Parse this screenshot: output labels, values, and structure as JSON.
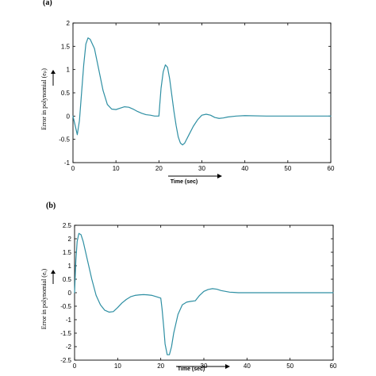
{
  "chart_data": [
    {
      "type": "line",
      "panel": "(a)",
      "xlabel": "Time (sec)",
      "ylabel": "Error in polynomial (eₚ)",
      "xlim": [
        0,
        60
      ],
      "ylim": [
        -1,
        2
      ],
      "xticks": [
        0,
        10,
        20,
        30,
        40,
        50,
        60
      ],
      "yticks": [
        -1,
        -0.5,
        0,
        0.5,
        1,
        1.5,
        2
      ],
      "xtick_labels": [
        "0",
        "10",
        "20",
        "30",
        "40",
        "50",
        "60"
      ],
      "ytick_labels": [
        "-1",
        "-0.5",
        "0",
        "0.5",
        "1",
        "1.5",
        "2"
      ],
      "grid": false,
      "series": [
        {
          "color": "#2e8fa3",
          "x": [
            0,
            0.5,
            1,
            1.5,
            2,
            2.5,
            3,
            3.5,
            4,
            5,
            6,
            7,
            8,
            9,
            10,
            11,
            12,
            13,
            14,
            15,
            16,
            17,
            18,
            19,
            20,
            20.2,
            20.5,
            21,
            21.5,
            22,
            22.5,
            23,
            23.5,
            24,
            24.5,
            25,
            25.5,
            26,
            27,
            28,
            29,
            30,
            31,
            32,
            33,
            34,
            35,
            36,
            38,
            40,
            45,
            50,
            55,
            60
          ],
          "y": [
            0,
            -0.2,
            -0.4,
            -0.1,
            0.5,
            1.1,
            1.55,
            1.68,
            1.65,
            1.45,
            1.0,
            0.55,
            0.25,
            0.15,
            0.14,
            0.17,
            0.2,
            0.19,
            0.15,
            0.1,
            0.06,
            0.03,
            0.02,
            0.0,
            0.0,
            0.25,
            0.6,
            0.95,
            1.1,
            1.05,
            0.8,
            0.45,
            0.1,
            -0.2,
            -0.45,
            -0.58,
            -0.62,
            -0.58,
            -0.4,
            -0.22,
            -0.08,
            0.02,
            0.04,
            0.02,
            -0.03,
            -0.05,
            -0.04,
            -0.02,
            0.0,
            0.01,
            0.0,
            0.0,
            0.0,
            0.0
          ]
        }
      ]
    },
    {
      "type": "line",
      "panel": "(b)",
      "xlabel": "Time (sec)",
      "ylabel": "Error in polynomial (eₑ)",
      "xlim": [
        0,
        60
      ],
      "ylim": [
        -2.5,
        2.5
      ],
      "xticks": [
        0,
        10,
        20,
        30,
        40,
        50,
        60
      ],
      "yticks": [
        -2.5,
        -2,
        -1.5,
        -1,
        -0.5,
        0,
        0.5,
        1,
        1.5,
        2,
        2.5
      ],
      "xtick_labels": [
        "0",
        "10",
        "20",
        "30",
        "40",
        "50",
        "60"
      ],
      "ytick_labels": [
        "-2.5",
        "-2",
        "-1.5",
        "-1",
        "-0.5",
        "0",
        "0.5",
        "1",
        "1.5",
        "2",
        "2.5"
      ],
      "grid": false,
      "series": [
        {
          "color": "#2e8fa3",
          "x": [
            0,
            0.3,
            0.6,
            1,
            1.5,
            2,
            3,
            4,
            5,
            6,
            7,
            8,
            9,
            10,
            11,
            12,
            13,
            14,
            15,
            16,
            17,
            18,
            19,
            20,
            20.3,
            20.7,
            21,
            21.5,
            22,
            22.5,
            23,
            24,
            25,
            26,
            27,
            28,
            29,
            30,
            31,
            32,
            33,
            34,
            35,
            36,
            37,
            38,
            40,
            42,
            45,
            50,
            55,
            60
          ],
          "y": [
            0,
            1.2,
            1.9,
            2.2,
            2.15,
            1.9,
            1.2,
            0.5,
            -0.1,
            -0.45,
            -0.65,
            -0.72,
            -0.7,
            -0.55,
            -0.38,
            -0.25,
            -0.15,
            -0.1,
            -0.08,
            -0.07,
            -0.08,
            -0.1,
            -0.15,
            -0.2,
            -0.6,
            -1.3,
            -1.9,
            -2.3,
            -2.3,
            -2.0,
            -1.5,
            -0.8,
            -0.45,
            -0.35,
            -0.32,
            -0.3,
            -0.1,
            0.05,
            0.12,
            0.15,
            0.13,
            0.08,
            0.05,
            0.02,
            0.01,
            0.0,
            0.0,
            0.0,
            0.0,
            0.0,
            0.0,
            0.0
          ]
        }
      ]
    }
  ]
}
